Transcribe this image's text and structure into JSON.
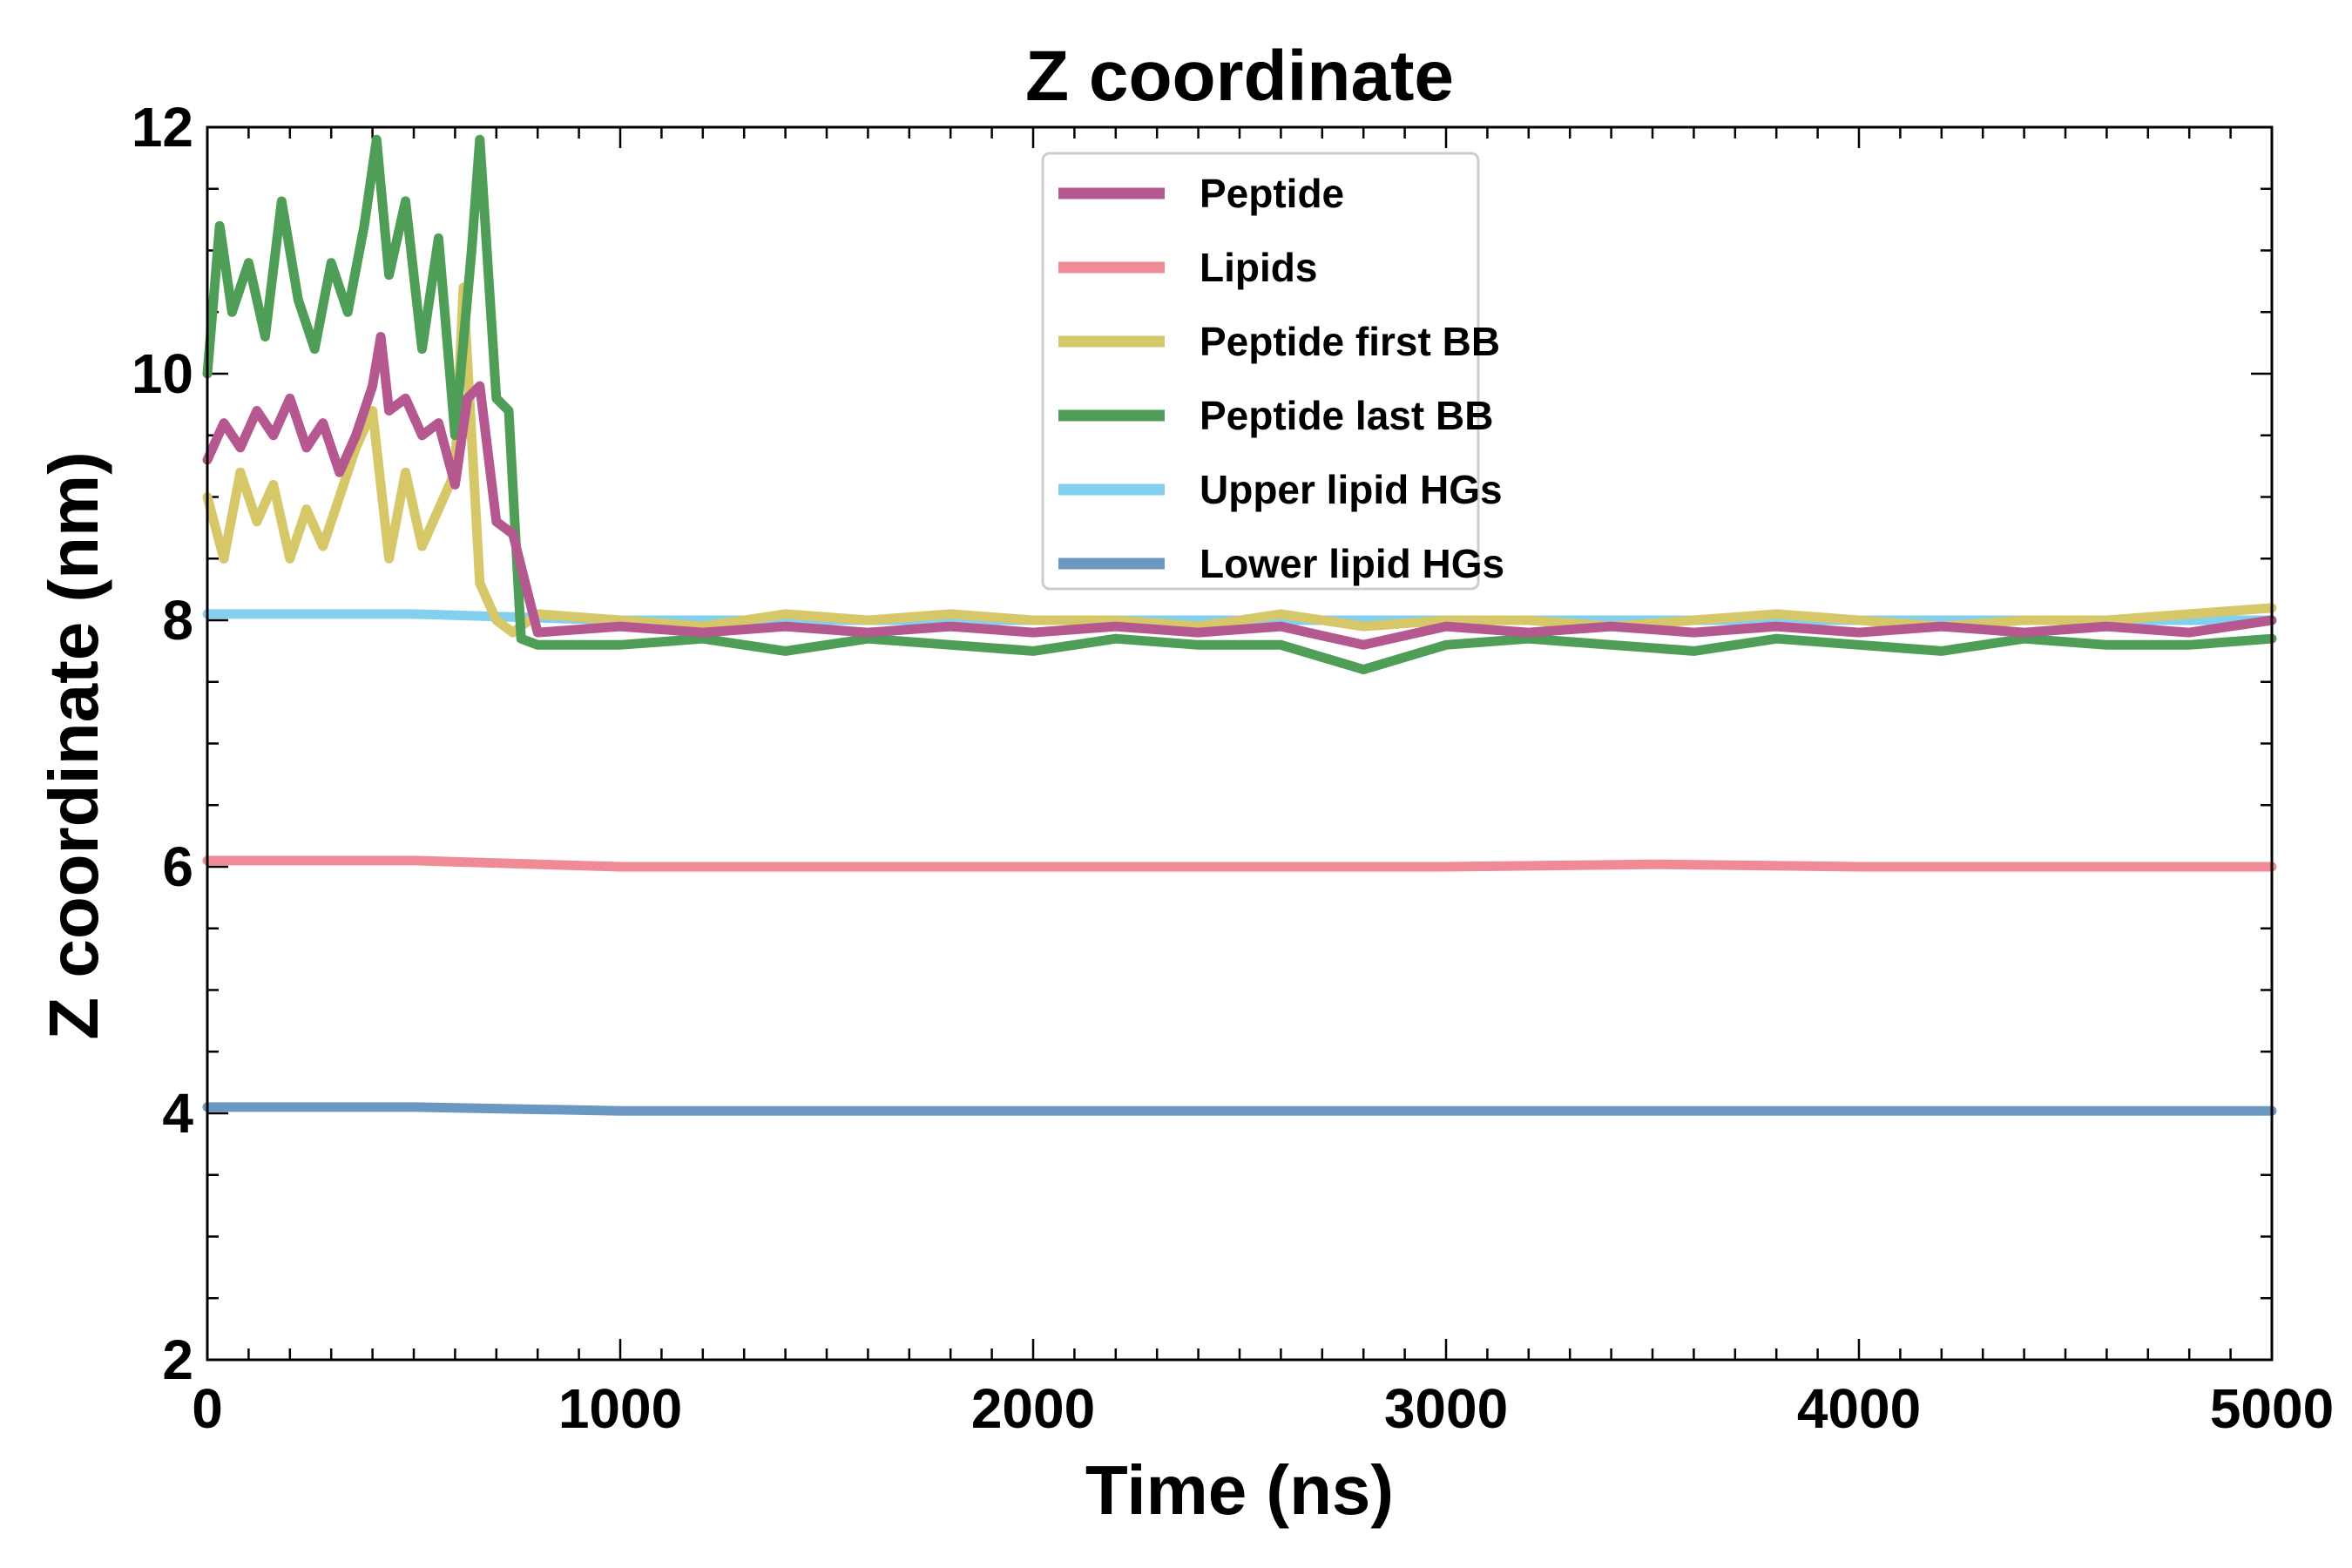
{
  "chart_data": {
    "type": "line",
    "title": "Z coordinate",
    "xlabel": "Time (ns)",
    "ylabel": "Z coordinate (nm)",
    "xlim": [
      0,
      5000
    ],
    "ylim": [
      2,
      12
    ],
    "xticks": [
      0,
      1000,
      2000,
      3000,
      4000,
      5000
    ],
    "yticks": [
      2,
      4,
      6,
      8,
      10,
      12
    ],
    "grid": false,
    "legend_position": "top-center",
    "series": [
      {
        "name": "Peptide",
        "color": "#b5588f",
        "x": [
          0,
          40,
          80,
          120,
          160,
          200,
          240,
          280,
          320,
          360,
          400,
          420,
          440,
          480,
          520,
          560,
          600,
          630,
          660,
          700,
          740,
          800,
          1000,
          1200,
          1400,
          1600,
          1800,
          2000,
          2200,
          2400,
          2600,
          2800,
          3000,
          3200,
          3400,
          3600,
          3800,
          4000,
          4200,
          4400,
          4600,
          4800,
          5000
        ],
        "y": [
          9.3,
          9.6,
          9.4,
          9.7,
          9.5,
          9.8,
          9.4,
          9.6,
          9.2,
          9.5,
          9.9,
          10.3,
          9.7,
          9.8,
          9.5,
          9.6,
          9.1,
          9.8,
          9.9,
          8.8,
          8.7,
          7.9,
          7.95,
          7.9,
          7.95,
          7.9,
          7.95,
          7.9,
          7.95,
          7.9,
          7.95,
          7.8,
          7.95,
          7.9,
          7.95,
          7.9,
          7.95,
          7.9,
          7.95,
          7.9,
          7.95,
          7.9,
          8.0
        ]
      },
      {
        "name": "Lipids",
        "color": "#ef8a96",
        "x": [
          0,
          500,
          1000,
          1500,
          2000,
          2500,
          3000,
          3500,
          4000,
          4500,
          5000
        ],
        "y": [
          6.05,
          6.05,
          6.0,
          6.0,
          6.0,
          6.0,
          6.0,
          6.02,
          6.0,
          6.0,
          6.0
        ]
      },
      {
        "name": "Peptide first BB",
        "color": "#d6c869",
        "x": [
          0,
          40,
          80,
          120,
          160,
          200,
          240,
          280,
          320,
          360,
          400,
          440,
          480,
          520,
          560,
          600,
          620,
          660,
          700,
          740,
          800,
          1000,
          1200,
          1400,
          1600,
          1800,
          2000,
          2200,
          2400,
          2600,
          2800,
          3000,
          3200,
          3400,
          3600,
          3800,
          4000,
          4200,
          4400,
          4600,
          4800,
          5000
        ],
        "y": [
          9.0,
          8.5,
          9.2,
          8.8,
          9.1,
          8.5,
          8.9,
          8.6,
          9.0,
          9.4,
          9.7,
          8.5,
          9.2,
          8.6,
          8.9,
          9.2,
          10.7,
          8.3,
          8.0,
          7.9,
          8.05,
          8.0,
          7.95,
          8.05,
          8.0,
          8.05,
          8.0,
          8.0,
          7.95,
          8.05,
          7.95,
          8.0,
          8.0,
          7.95,
          8.0,
          8.05,
          8.0,
          7.95,
          8.0,
          8.0,
          8.05,
          8.1
        ]
      },
      {
        "name": "Peptide last BB",
        "color": "#4f9e58",
        "x": [
          0,
          30,
          60,
          100,
          140,
          180,
          220,
          260,
          300,
          340,
          380,
          410,
          440,
          480,
          520,
          560,
          600,
          640,
          660,
          700,
          730,
          760,
          800,
          1000,
          1200,
          1400,
          1600,
          1800,
          2000,
          2200,
          2400,
          2600,
          2800,
          3000,
          3200,
          3400,
          3600,
          3800,
          4000,
          4200,
          4400,
          4600,
          4800,
          5000
        ],
        "y": [
          10.0,
          11.2,
          10.5,
          10.9,
          10.3,
          11.4,
          10.6,
          10.2,
          10.9,
          10.5,
          11.2,
          11.9,
          10.8,
          11.4,
          10.2,
          11.1,
          9.5,
          11.0,
          11.9,
          9.8,
          9.7,
          7.85,
          7.8,
          7.8,
          7.85,
          7.75,
          7.85,
          7.8,
          7.75,
          7.85,
          7.8,
          7.8,
          7.6,
          7.8,
          7.85,
          7.8,
          7.75,
          7.85,
          7.8,
          7.75,
          7.85,
          7.8,
          7.8,
          7.85
        ]
      },
      {
        "name": "Upper lipid HGs",
        "color": "#82d0ee",
        "x": [
          0,
          500,
          1000,
          1500,
          2000,
          2500,
          3000,
          3500,
          4000,
          4500,
          5000
        ],
        "y": [
          8.05,
          8.05,
          8.0,
          8.0,
          8.0,
          8.0,
          8.0,
          8.0,
          8.0,
          8.0,
          8.0
        ]
      },
      {
        "name": "Lower lipid HGs",
        "color": "#6a98c1",
        "x": [
          0,
          500,
          1000,
          1500,
          2000,
          2500,
          3000,
          3500,
          4000,
          4500,
          5000
        ],
        "y": [
          4.05,
          4.05,
          4.02,
          4.02,
          4.02,
          4.02,
          4.02,
          4.02,
          4.02,
          4.02,
          4.02
        ]
      }
    ]
  }
}
